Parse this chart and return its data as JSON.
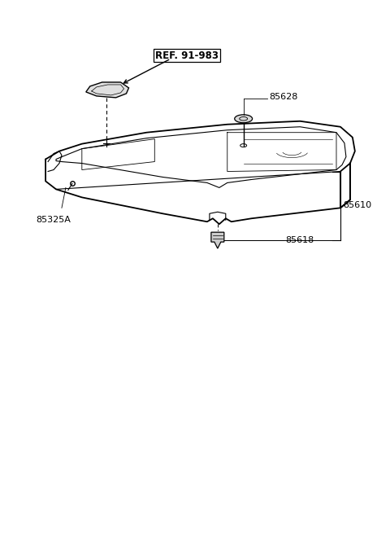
{
  "background_color": "#ffffff",
  "fig_width": 4.8,
  "fig_height": 6.57,
  "dpi": 100,
  "ref_label": "REF. 91-983",
  "line_color": "#000000",
  "text_color": "#000000",
  "gray_text": "#555555"
}
